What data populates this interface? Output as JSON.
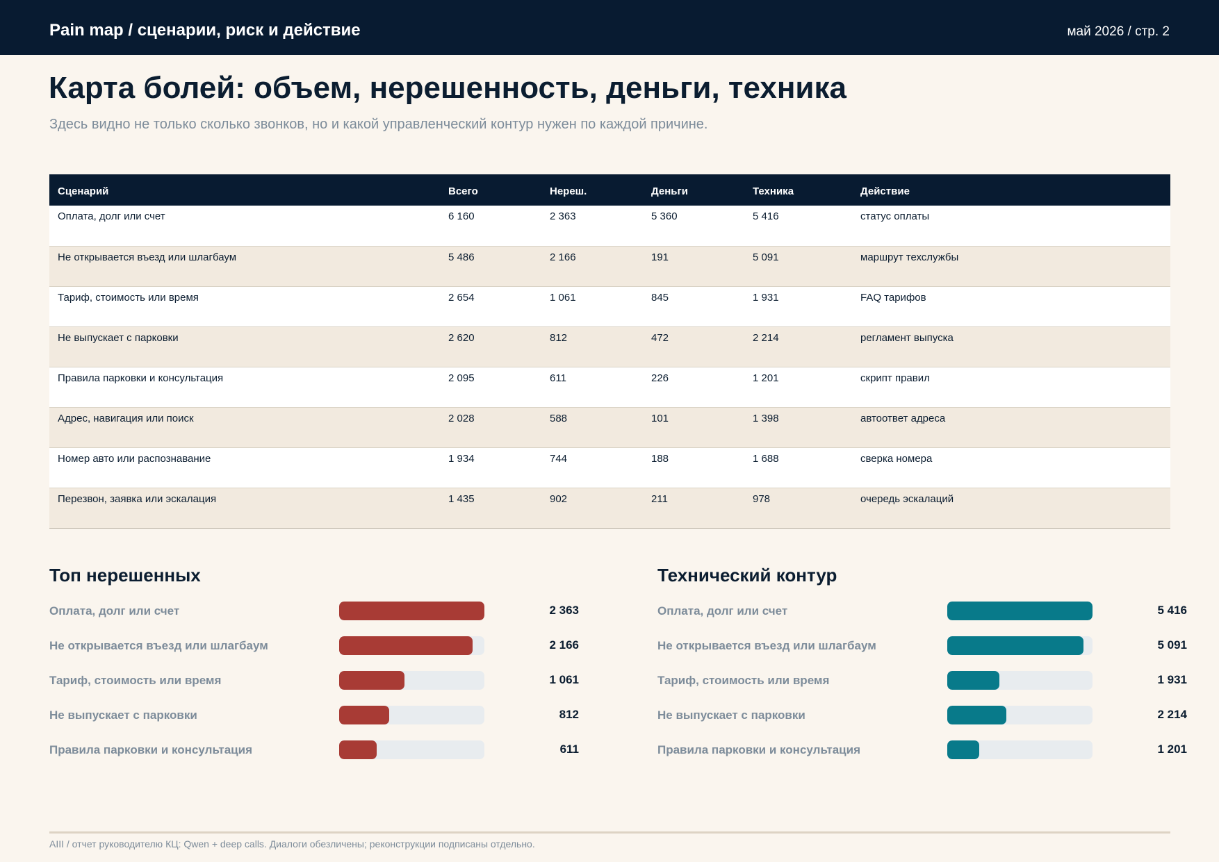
{
  "header": {
    "title": "Pain map / сценарии, риск и действие",
    "page_label": "май 2026 / стр. 2"
  },
  "page": {
    "title": "Карта болей: объем, нерешенность, деньги, техника",
    "subtitle": "Здесь видно не только сколько звонков, но и какой управленческий контур нужен по каждой причине."
  },
  "table": {
    "columns": [
      "Сценарий",
      "Всего",
      "Нереш.",
      "Деньги",
      "Техника",
      "Действие"
    ],
    "rows": [
      [
        "Оплата, долг или счет",
        "6 160",
        "2 363",
        "5 360",
        "5 416",
        "статус оплаты"
      ],
      [
        "Не открывается въезд или шлагбаум",
        "5 486",
        "2 166",
        "191",
        "5 091",
        "маршрут техслужбы"
      ],
      [
        "Тариф, стоимость или время",
        "2 654",
        "1 061",
        "845",
        "1 931",
        "FAQ тарифов"
      ],
      [
        "Не выпускает с парковки",
        "2 620",
        "812",
        "472",
        "2 214",
        "регламент выпуска"
      ],
      [
        "Правила парковки и консультация",
        "2 095",
        "611",
        "226",
        "1 201",
        "скрипт правил"
      ],
      [
        "Адрес, навигация или поиск",
        "2 028",
        "588",
        "101",
        "1 398",
        "автоответ адреса"
      ],
      [
        "Номер авто или распознавание",
        "1 934",
        "744",
        "188",
        "1 688",
        "сверка номера"
      ],
      [
        "Перезвон, заявка или эскалация",
        "1 435",
        "902",
        "211",
        "978",
        "очередь эскалаций"
      ]
    ]
  },
  "chart_data": [
    {
      "type": "bar",
      "title": "Топ нерешенных",
      "categories": [
        "Оплата, долг или счет",
        "Не открывается въезд или шлагбаум",
        "Тариф, стоимость или время",
        "Не выпускает с парковки",
        "Правила парковки и консультация"
      ],
      "values": [
        2363,
        2166,
        1061,
        812,
        611
      ],
      "value_labels": [
        "2 363",
        "2 166",
        "1 061",
        "812",
        "611"
      ],
      "color": "#a83b35"
    },
    {
      "type": "bar",
      "title": "Технический контур",
      "categories": [
        "Оплата, долг или счет",
        "Не открывается въезд или шлагбаум",
        "Тариф, стоимость или время",
        "Не выпускает с парковки",
        "Правила парковки и консультация"
      ],
      "values": [
        5416,
        5091,
        1931,
        2214,
        1201
      ],
      "value_labels": [
        "5 416",
        "5 091",
        "1 931",
        "2 214",
        "1 201"
      ],
      "color": "#087a8a"
    }
  ],
  "footer": {
    "text": "AIII / отчет руководителю КЦ: Qwen + deep calls. Диалоги обезличены; реконструкции подписаны отдельно."
  },
  "colors": {
    "navy": "#081b31",
    "background": "#faf5ee",
    "row_alt": "#f2eadf",
    "unresolved_bar": "#a83b35",
    "technical_bar": "#087a8a",
    "track": "#e8ecef",
    "muted_text": "#7d8c9a"
  }
}
